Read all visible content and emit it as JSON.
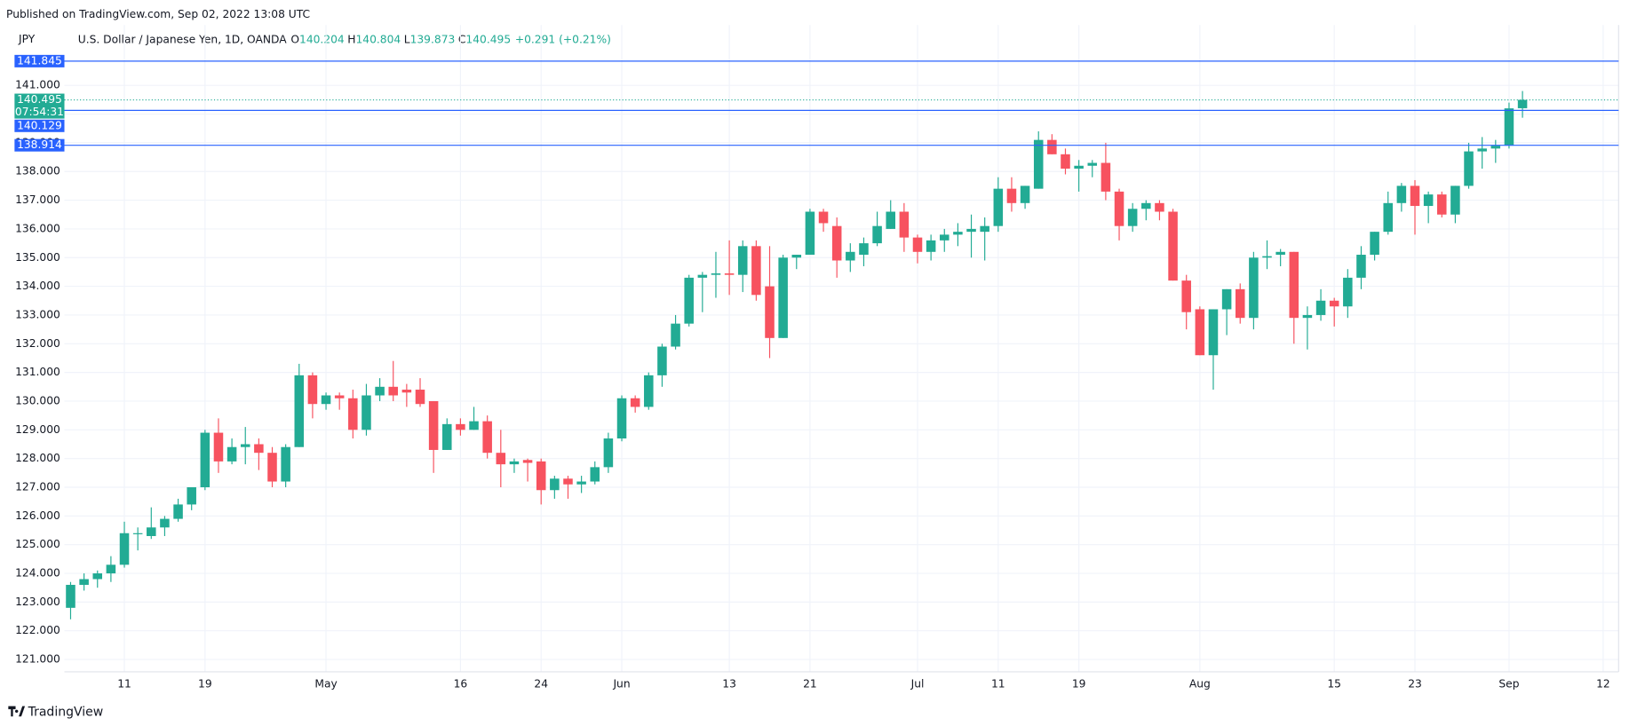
{
  "header": {
    "published": "Published on TradingView.com, Sep 02, 2022 13:08 UTC"
  },
  "chart_data": {
    "type": "candlestick",
    "symbol": "JPY",
    "legend": {
      "name": "U.S. Dollar / Japanese Yen, 1D, OANDA",
      "fields": [
        {
          "key": "O",
          "value": "140.204"
        },
        {
          "key": "H",
          "value": "140.804"
        },
        {
          "key": "L",
          "value": "139.873"
        },
        {
          "key": "C",
          "value": "140.495"
        }
      ],
      "change": "+0.291 (+0.21%)"
    },
    "up_color": "#22ab94",
    "down_color": "#f7525f",
    "open": [
      122.8,
      123.6,
      123.8,
      124.0,
      124.3,
      125.4,
      125.3,
      125.6,
      125.9,
      126.4,
      127.0,
      128.9,
      127.9,
      128.4,
      128.5,
      128.2,
      127.2,
      128.4,
      130.9,
      129.9,
      130.2,
      130.1,
      129.0,
      130.2,
      130.5,
      130.4,
      130.4,
      130.0,
      128.3,
      129.2,
      129.0,
      129.3,
      128.2,
      127.8,
      127.95,
      127.9,
      126.9,
      127.3,
      127.1,
      127.2,
      127.7,
      128.7,
      130.1,
      129.8,
      130.9,
      131.9,
      132.7,
      134.3,
      134.4,
      134.45,
      134.4,
      135.4,
      134.0,
      132.2,
      135.0,
      135.1,
      136.6,
      136.1,
      134.9,
      135.1,
      135.5,
      136.0,
      136.6,
      135.7,
      135.2,
      135.6,
      135.8,
      135.9,
      135.9,
      136.1,
      137.4,
      136.9,
      137.4,
      139.1,
      138.6,
      138.1,
      138.2,
      138.3,
      137.3,
      136.1,
      136.7,
      136.9,
      136.6,
      134.2,
      133.2,
      131.6,
      133.2,
      133.9,
      132.9,
      135.0,
      135.1,
      135.2,
      132.9,
      133.0,
      133.5,
      133.3,
      134.3,
      135.1,
      135.9,
      136.9,
      137.5,
      136.8,
      137.2,
      136.5,
      137.5,
      138.7,
      138.8,
      138.9,
      140.204
    ],
    "high": [
      123.7,
      124.0,
      124.1,
      124.6,
      125.8,
      125.6,
      126.3,
      126.0,
      126.6,
      127.0,
      129.0,
      129.4,
      128.7,
      129.1,
      128.7,
      128.4,
      128.5,
      131.3,
      131.0,
      130.3,
      130.3,
      130.4,
      130.6,
      130.8,
      131.4,
      130.6,
      130.8,
      130.0,
      129.4,
      129.4,
      129.8,
      129.5,
      129.0,
      128.0,
      128.0,
      128.0,
      127.4,
      127.4,
      127.4,
      127.9,
      128.9,
      130.2,
      130.2,
      131.0,
      132.0,
      133.0,
      134.4,
      134.5,
      135.2,
      135.6,
      135.6,
      135.6,
      135.4,
      135.1,
      135.1,
      136.7,
      136.7,
      136.4,
      135.5,
      135.7,
      136.6,
      137.0,
      136.9,
      135.8,
      135.8,
      136.0,
      136.2,
      136.5,
      136.4,
      137.8,
      137.8,
      137.5,
      139.4,
      139.3,
      138.8,
      138.4,
      138.4,
      139.0,
      137.4,
      136.9,
      137.0,
      137.0,
      136.7,
      134.4,
      133.3,
      133.2,
      133.9,
      134.1,
      135.2,
      135.6,
      135.3,
      135.2,
      133.3,
      133.9,
      133.6,
      134.6,
      135.4,
      135.9,
      137.3,
      137.6,
      137.7,
      137.3,
      137.3,
      137.5,
      139.0,
      139.2,
      139.1,
      140.4,
      140.804
    ],
    "low": [
      122.4,
      123.4,
      123.5,
      123.7,
      124.2,
      124.8,
      125.2,
      125.3,
      125.8,
      126.2,
      126.9,
      127.5,
      127.8,
      127.8,
      127.6,
      127.0,
      127.0,
      128.4,
      129.4,
      129.7,
      129.7,
      128.7,
      128.8,
      130.0,
      130.0,
      129.8,
      129.8,
      127.5,
      128.3,
      128.8,
      129.0,
      128.0,
      127.0,
      127.5,
      127.2,
      126.4,
      126.6,
      126.6,
      126.8,
      127.1,
      127.5,
      128.6,
      129.6,
      129.7,
      130.5,
      131.8,
      132.6,
      133.1,
      133.6,
      133.7,
      133.8,
      133.5,
      131.5,
      132.2,
      134.6,
      135.1,
      135.9,
      134.3,
      134.5,
      134.7,
      135.4,
      136.0,
      135.2,
      134.8,
      134.9,
      135.2,
      135.4,
      135.0,
      134.9,
      135.9,
      136.6,
      136.7,
      137.4,
      138.6,
      137.9,
      137.3,
      137.8,
      137.0,
      135.6,
      135.9,
      136.3,
      136.3,
      134.2,
      132.5,
      131.6,
      130.4,
      132.3,
      132.7,
      132.5,
      134.6,
      134.7,
      132.0,
      131.8,
      132.8,
      132.6,
      132.9,
      133.9,
      134.9,
      135.8,
      136.6,
      135.8,
      136.2,
      136.4,
      136.2,
      137.4,
      138.1,
      138.3,
      138.8,
      139.873
    ],
    "close": [
      123.6,
      123.8,
      124.0,
      124.3,
      125.4,
      125.4,
      125.6,
      125.9,
      126.4,
      127.0,
      128.9,
      127.9,
      128.4,
      128.5,
      128.2,
      127.2,
      128.4,
      130.9,
      129.9,
      130.2,
      130.1,
      129.0,
      130.2,
      130.5,
      130.2,
      130.3,
      129.9,
      128.3,
      129.2,
      129.0,
      129.3,
      128.2,
      127.8,
      127.9,
      127.85,
      126.9,
      127.3,
      127.1,
      127.2,
      127.7,
      128.7,
      130.1,
      129.8,
      130.9,
      131.9,
      132.7,
      134.3,
      134.4,
      134.45,
      134.4,
      135.4,
      133.7,
      132.2,
      135.0,
      135.1,
      136.6,
      136.2,
      134.9,
      135.2,
      135.5,
      136.1,
      136.6,
      135.7,
      135.2,
      135.6,
      135.8,
      135.9,
      136.0,
      136.1,
      137.4,
      136.9,
      137.5,
      139.1,
      138.6,
      138.1,
      138.2,
      138.3,
      137.3,
      136.1,
      136.7,
      136.9,
      136.6,
      134.2,
      133.1,
      131.6,
      133.2,
      133.9,
      132.9,
      135.0,
      135.05,
      135.2,
      132.9,
      133.0,
      133.5,
      133.3,
      134.3,
      135.1,
      135.9,
      136.9,
      137.5,
      136.8,
      137.2,
      136.5,
      137.5,
      138.7,
      138.8,
      138.9,
      140.2,
      140.495
    ],
    "xlim": [
      -0.46,
      115.15
    ],
    "xticks": [
      {
        "value": 4,
        "label": "11"
      },
      {
        "value": 10,
        "label": "19"
      },
      {
        "value": 19,
        "label": "May"
      },
      {
        "value": 29,
        "label": "16"
      },
      {
        "value": 35,
        "label": "24"
      },
      {
        "value": 41,
        "label": "Jun"
      },
      {
        "value": 49,
        "label": "13"
      },
      {
        "value": 55,
        "label": "21"
      },
      {
        "value": 63,
        "label": "Jul"
      },
      {
        "value": 69,
        "label": "11"
      },
      {
        "value": 75,
        "label": "19"
      },
      {
        "value": 84,
        "label": "Aug"
      },
      {
        "value": 94,
        "label": "15"
      },
      {
        "value": 100,
        "label": "23"
      },
      {
        "value": 107,
        "label": "Sep"
      },
      {
        "value": 114,
        "label": "12"
      }
    ],
    "ylim": [
      120.57,
      143.1
    ],
    "yticks": [
      {
        "value": 121,
        "label": "121.000"
      },
      {
        "value": 122,
        "label": "122.000"
      },
      {
        "value": 123,
        "label": "123.000"
      },
      {
        "value": 124,
        "label": "124.000"
      },
      {
        "value": 125,
        "label": "125.000"
      },
      {
        "value": 126,
        "label": "126.000"
      },
      {
        "value": 127,
        "label": "127.000"
      },
      {
        "value": 128,
        "label": "128.000"
      },
      {
        "value": 129,
        "label": "129.000"
      },
      {
        "value": 130,
        "label": "130.000"
      },
      {
        "value": 131,
        "label": "131.000"
      },
      {
        "value": 132,
        "label": "132.000"
      },
      {
        "value": 133,
        "label": "133.000"
      },
      {
        "value": 134,
        "label": "134.000"
      },
      {
        "value": 135,
        "label": "135.000"
      },
      {
        "value": 136,
        "label": "136.000"
      },
      {
        "value": 137,
        "label": "137.000"
      },
      {
        "value": 138,
        "label": "138.000"
      },
      {
        "value": 139,
        "label": "139.000"
      },
      {
        "value": 140,
        "label": "140.000"
      },
      {
        "value": 141,
        "label": "141.000"
      }
    ],
    "grid": true,
    "price_lines": [
      {
        "value": 141.845,
        "color": "#2962ff"
      },
      {
        "value": 140.129,
        "color": "#2962ff"
      },
      {
        "value": 138.914,
        "color": "#2962ff"
      }
    ],
    "last_price": {
      "value": 140.495,
      "countdown": "07:54:31",
      "color": "#22ab94"
    }
  },
  "footer": {
    "brand": "TradingView"
  }
}
